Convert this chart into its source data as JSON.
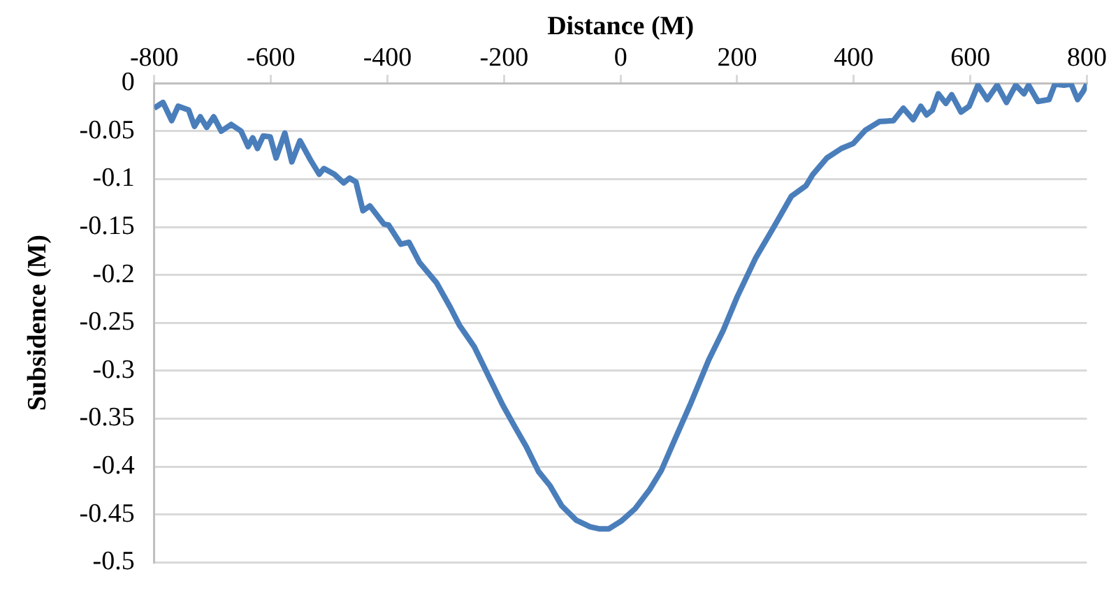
{
  "chart_data": {
    "type": "line",
    "xlabel": "Distance (M)",
    "ylabel": "Subsidence (M)",
    "xlim": [
      -800,
      800
    ],
    "xticks": [
      -800,
      -600,
      -400,
      -200,
      0,
      200,
      400,
      600,
      800
    ],
    "ylim": [
      -0.5,
      0
    ],
    "yticks": [
      0,
      -0.05,
      -0.1,
      -0.15,
      -0.2,
      -0.25,
      -0.3,
      -0.35,
      -0.4,
      -0.45,
      -0.5
    ],
    "grid": "y",
    "legend": false,
    "marker": "none",
    "line_style": "solid",
    "series": [
      {
        "color": "#4a7ebb",
        "x": [
          -800,
          -785,
          -770,
          -759,
          -741,
          -731,
          -721,
          -710,
          -698,
          -685,
          -668,
          -651,
          -639,
          -631,
          -623,
          -613,
          -601,
          -591,
          -576,
          -564,
          -550,
          -532,
          -517,
          -509,
          -491,
          -475,
          -465,
          -454,
          -442,
          -430,
          -406,
          -398,
          -377,
          -363,
          -345,
          -316,
          -292,
          -276,
          -251,
          -223,
          -202,
          -180,
          -162,
          -141,
          -121,
          -101,
          -76,
          -52,
          -37,
          -20,
          1,
          25,
          50,
          70,
          90,
          119,
          151,
          176,
          200,
          232,
          261,
          293,
          318,
          330,
          354,
          379,
          399,
          420,
          444,
          468,
          485,
          502,
          515,
          525,
          535,
          545,
          558,
          568,
          584,
          598,
          613,
          629,
          646,
          662,
          678,
          692,
          700,
          716,
          735,
          745,
          761,
          773,
          784,
          793,
          800
        ],
        "values": [
          -0.026,
          -0.02,
          -0.039,
          -0.024,
          -0.028,
          -0.045,
          -0.035,
          -0.046,
          -0.035,
          -0.05,
          -0.043,
          -0.05,
          -0.066,
          -0.057,
          -0.068,
          -0.055,
          -0.056,
          -0.078,
          -0.052,
          -0.082,
          -0.06,
          -0.08,
          -0.095,
          -0.089,
          -0.095,
          -0.104,
          -0.099,
          -0.103,
          -0.133,
          -0.128,
          -0.147,
          -0.148,
          -0.168,
          -0.166,
          -0.187,
          -0.208,
          -0.234,
          -0.253,
          -0.275,
          -0.31,
          -0.336,
          -0.36,
          -0.379,
          -0.405,
          -0.42,
          -0.441,
          -0.456,
          -0.463,
          -0.465,
          -0.465,
          -0.457,
          -0.444,
          -0.424,
          -0.404,
          -0.376,
          -0.336,
          -0.289,
          -0.258,
          -0.223,
          -0.182,
          -0.152,
          -0.118,
          -0.107,
          -0.095,
          -0.078,
          -0.068,
          -0.063,
          -0.049,
          -0.04,
          -0.039,
          -0.026,
          -0.038,
          -0.024,
          -0.033,
          -0.028,
          -0.011,
          -0.021,
          -0.012,
          -0.03,
          -0.024,
          -0.002,
          -0.017,
          -0.002,
          -0.02,
          -0.002,
          -0.011,
          -0.002,
          -0.019,
          -0.017,
          -0.001,
          -0.002,
          -0.001,
          -0.017,
          -0.009,
          -0.001
        ]
      }
    ]
  }
}
